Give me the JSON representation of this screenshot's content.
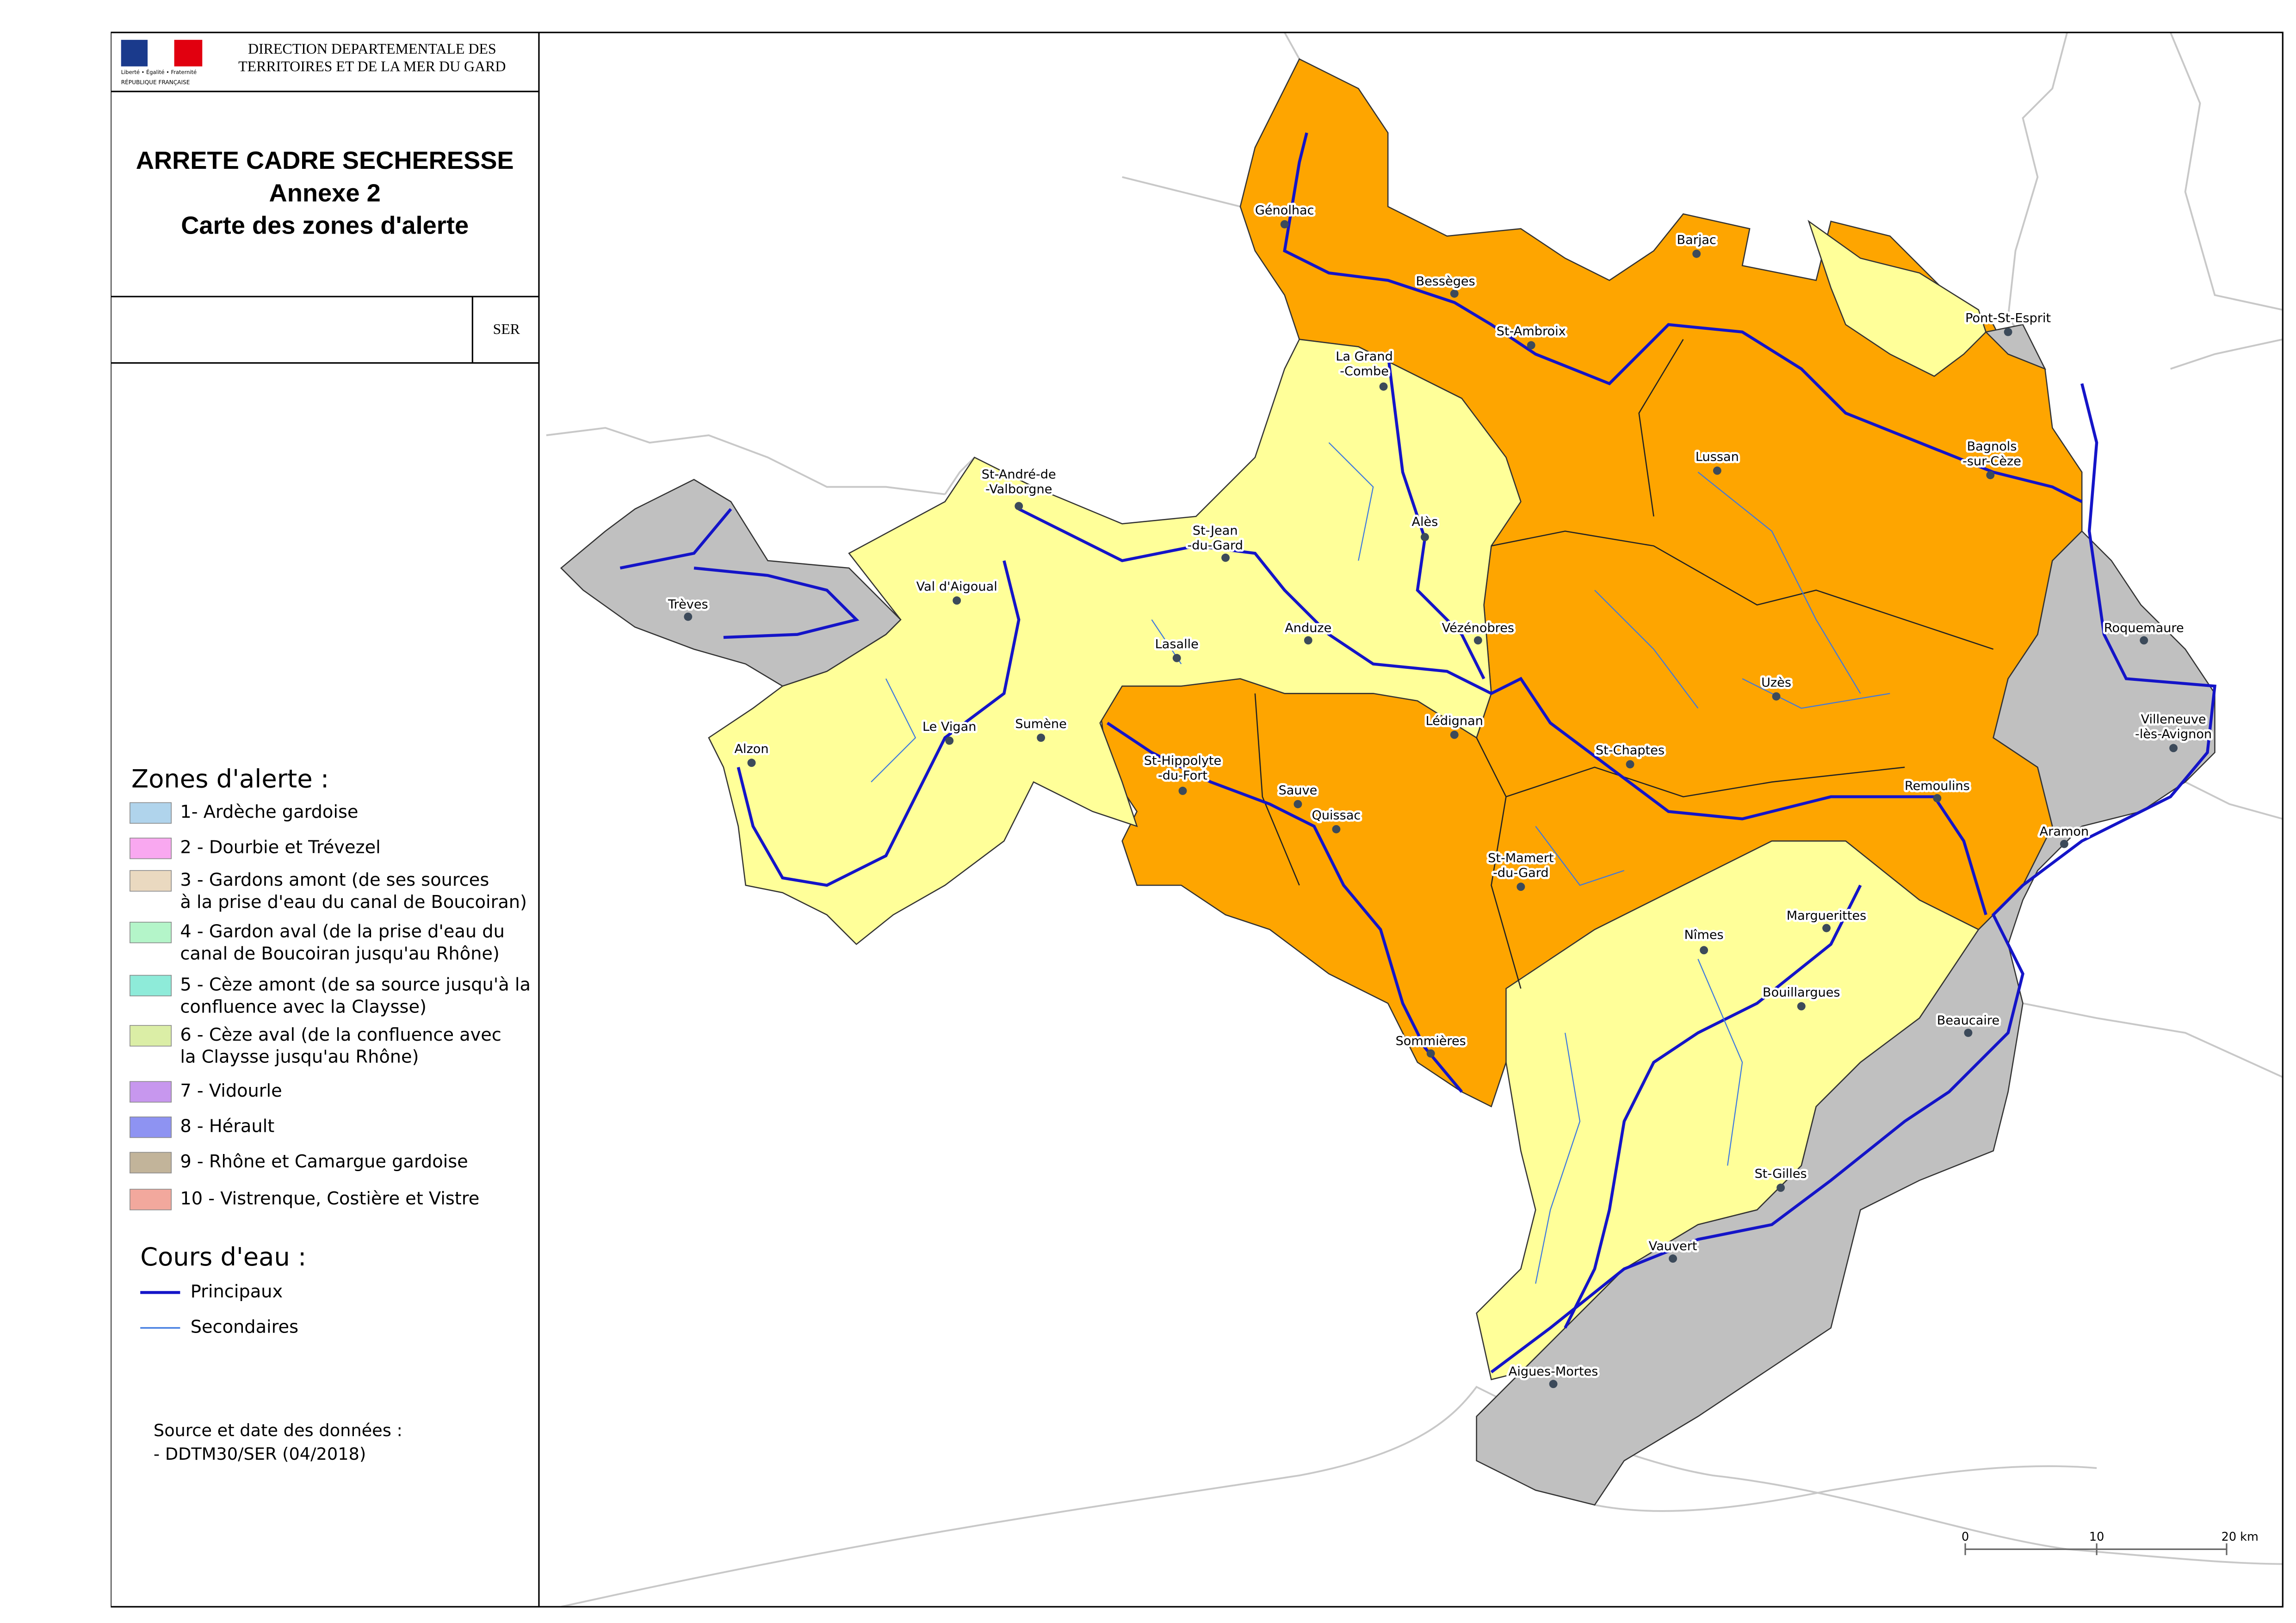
{
  "header": {
    "org_lines": [
      "DIRECTION DEPARTEMENTALE DES",
      "TERRITOIRES ET DE LA MER DU GARD"
    ],
    "motto": "Liberté • Égalité • Fraternité",
    "republic": "RÉPUBLIQUE FRANÇAISE"
  },
  "title": {
    "lines": [
      "ARRETE CADRE SECHERESSE",
      "Annexe 2",
      "Carte des zones d'alerte"
    ]
  },
  "code": "SER",
  "legend": {
    "zones_title": "Zones d'alerte :",
    "zones": [
      {
        "lines": [
          "1- Ardèche gardoise"
        ],
        "color": "#b0d4ec"
      },
      {
        "lines": [
          "2 - Dourbie et Trévezel"
        ],
        "color": "#f9a8f0"
      },
      {
        "lines": [
          "3 - Gardons amont (de ses sources",
          "   à la prise d'eau du canal de Boucoiran)"
        ],
        "color": "#ead9c0"
      },
      {
        "lines": [
          "4 - Gardon aval (de la prise d'eau du",
          "   canal de Boucoiran jusqu'au Rhône)"
        ],
        "color": "#b4f5c9"
      },
      {
        "lines": [
          "5 - Cèze amont (de sa source jusqu'à la",
          "   confluence avec la Claysse)"
        ],
        "color": "#8eebd9"
      },
      {
        "lines": [
          "6 - Cèze aval (de la confluence avec",
          "   la Claysse jusqu'au Rhône)"
        ],
        "color": "#dbeea6"
      },
      {
        "lines": [
          "7 - Vidourle"
        ],
        "color": "#c797ee"
      },
      {
        "lines": [
          "8 - Hérault"
        ],
        "color": "#8e93f2"
      },
      {
        "lines": [
          "9 - Rhône et Camargue gardoise"
        ],
        "color": "#c2b49a"
      },
      {
        "lines": [
          "10 - Vistrenque, Costière et Vistre"
        ],
        "color": "#f2a89d"
      }
    ],
    "rivers_title": "Cours d'eau :",
    "rivers": [
      {
        "label": "Principaux",
        "color": "#1414c8"
      },
      {
        "label": "Secondaires",
        "color": "#3c78e0"
      }
    ]
  },
  "source": {
    "lines": [
      "Source et date des données :",
      "- DDTM30/SER (04/2018)"
    ]
  },
  "map": {
    "towns": [
      {
        "lines": [
          "Génolhac"
        ]
      },
      {
        "lines": [
          "Barjac"
        ]
      },
      {
        "lines": [
          "Bessèges"
        ]
      },
      {
        "lines": [
          "St-Ambroix"
        ]
      },
      {
        "lines": [
          "La Grand",
          "-Combe"
        ]
      },
      {
        "lines": [
          "Pont-St-Esprit"
        ]
      },
      {
        "lines": [
          "Lussan"
        ]
      },
      {
        "lines": [
          "Bagnols",
          "-sur-Cèze"
        ]
      },
      {
        "lines": [
          "St-André-de",
          "-Valborgne"
        ]
      },
      {
        "lines": [
          "St-Jean",
          "-du-Gard"
        ]
      },
      {
        "lines": [
          "Alès"
        ]
      },
      {
        "lines": [
          "Val d'Aigoual"
        ]
      },
      {
        "lines": [
          "Trèves"
        ]
      },
      {
        "lines": [
          "Lasalle"
        ]
      },
      {
        "lines": [
          "Anduze"
        ]
      },
      {
        "lines": [
          "Vézénobres"
        ]
      },
      {
        "lines": [
          "Roquemaure"
        ]
      },
      {
        "lines": [
          "Uzès"
        ]
      },
      {
        "lines": [
          "Lédignan"
        ]
      },
      {
        "lines": [
          "Villeneuve",
          "-lès-Avignon"
        ]
      },
      {
        "lines": [
          "Le Vigan"
        ]
      },
      {
        "lines": [
          "Sumène"
        ]
      },
      {
        "lines": [
          "Alzon"
        ]
      },
      {
        "lines": [
          "St-Chaptes"
        ]
      },
      {
        "lines": [
          "St-Hippolyte",
          "-du-Fort"
        ]
      },
      {
        "lines": [
          "Sauve"
        ]
      },
      {
        "lines": [
          "Remoulins"
        ]
      },
      {
        "lines": [
          "Quissac"
        ]
      },
      {
        "lines": [
          "Aramon"
        ]
      },
      {
        "lines": [
          "St-Mamert",
          "-du-Gard"
        ]
      },
      {
        "lines": [
          "Marguerittes"
        ]
      },
      {
        "lines": [
          "Nîmes"
        ]
      },
      {
        "lines": [
          "Bouillargues"
        ]
      },
      {
        "lines": [
          "Beaucaire"
        ]
      },
      {
        "lines": [
          "Sommières"
        ]
      },
      {
        "lines": [
          "St-Gilles"
        ]
      },
      {
        "lines": [
          "Vauvert"
        ]
      },
      {
        "lines": [
          "Aigues-Mortes"
        ]
      }
    ],
    "scale": [
      "0",
      "10",
      "20 km"
    ]
  }
}
